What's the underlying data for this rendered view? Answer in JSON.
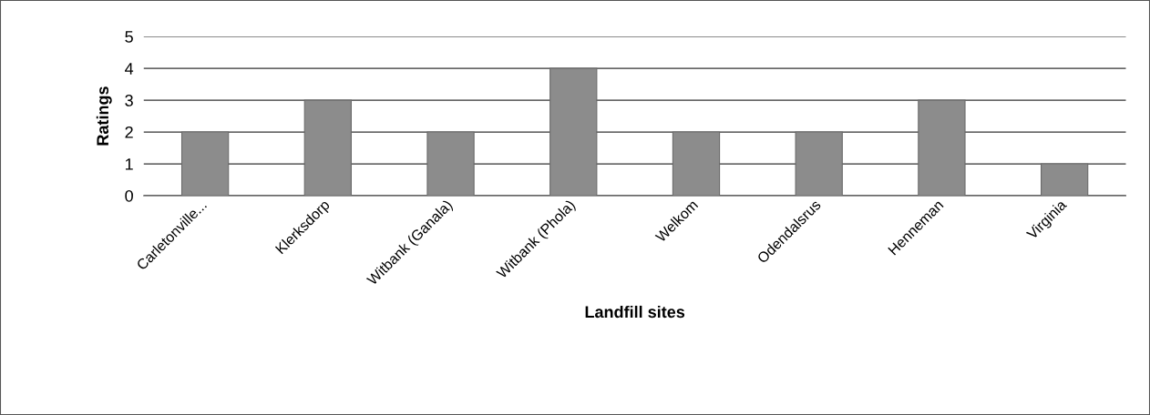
{
  "chart_data": {
    "type": "bar",
    "xlabel": "Landfill sites",
    "ylabel": "Ratings",
    "categories": [
      "Carletonville...",
      "Klerksdorp",
      "Witbank (Ganala)",
      "Witbank (Phola)",
      "Welkom",
      "Odendalsrus",
      "Henneman",
      "Virginia"
    ],
    "values": [
      2,
      3,
      2,
      4,
      2,
      2,
      3,
      1
    ],
    "color": "#8c8c8c",
    "ylim": [
      0,
      5
    ],
    "yticks": [
      0,
      1,
      2,
      3,
      4,
      5
    ],
    "grid": "y",
    "legend": false
  }
}
